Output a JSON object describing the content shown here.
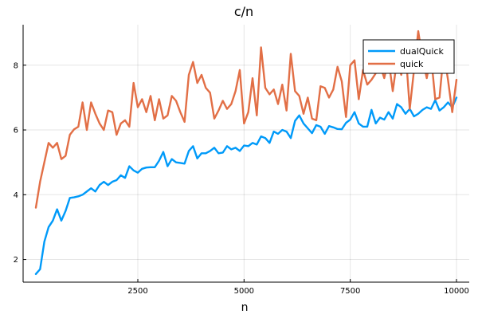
{
  "chart_data": {
    "type": "line",
    "title": "c/n",
    "xlabel": "n",
    "ylabel": "",
    "xlim": [
      -200,
      10300
    ],
    "ylim": [
      1.3,
      9.25
    ],
    "xticks": [
      2500,
      5000,
      7500,
      10000
    ],
    "xtick_labels": [
      "2500",
      "5000",
      "7500",
      "10000"
    ],
    "yticks": [
      2,
      4,
      6,
      8
    ],
    "ytick_labels": [
      "2",
      "4",
      "6",
      "8"
    ],
    "grid": true,
    "legend_position": "top-right",
    "series": [
      {
        "name": "dualQuick",
        "color": "#009af9",
        "x": [
          100,
          200,
          300,
          400,
          500,
          600,
          700,
          800,
          900,
          1000,
          1100,
          1200,
          1300,
          1400,
          1500,
          1600,
          1700,
          1800,
          1900,
          2000,
          2100,
          2200,
          2300,
          2400,
          2500,
          2600,
          2700,
          2800,
          2900,
          3000,
          3100,
          3200,
          3300,
          3400,
          3500,
          3600,
          3700,
          3800,
          3900,
          4000,
          4100,
          4200,
          4300,
          4400,
          4500,
          4600,
          4700,
          4800,
          4900,
          5000,
          5100,
          5200,
          5300,
          5400,
          5500,
          5600,
          5700,
          5800,
          5900,
          6000,
          6100,
          6200,
          6300,
          6400,
          6500,
          6600,
          6700,
          6800,
          6900,
          7000,
          7100,
          7200,
          7300,
          7400,
          7500,
          7600,
          7700,
          7800,
          7900,
          8000,
          8100,
          8200,
          8300,
          8400,
          8500,
          8600,
          8700,
          8800,
          8900,
          9000,
          9100,
          9200,
          9300,
          9400,
          9500,
          9600,
          9700,
          9800,
          9900,
          10000
        ],
        "y": [
          1.55,
          1.7,
          2.55,
          3.0,
          3.2,
          3.55,
          3.2,
          3.5,
          3.9,
          3.92,
          3.95,
          4.0,
          4.1,
          4.2,
          4.1,
          4.3,
          4.4,
          4.3,
          4.4,
          4.45,
          4.6,
          4.52,
          4.88,
          4.75,
          4.68,
          4.8,
          4.84,
          4.85,
          4.85,
          5.05,
          5.32,
          4.88,
          5.1,
          5.0,
          4.98,
          4.96,
          5.35,
          5.5,
          5.12,
          5.28,
          5.28,
          5.35,
          5.45,
          5.28,
          5.3,
          5.5,
          5.4,
          5.45,
          5.35,
          5.52,
          5.5,
          5.6,
          5.55,
          5.8,
          5.75,
          5.6,
          5.95,
          5.88,
          6.0,
          5.95,
          5.75,
          6.28,
          6.45,
          6.2,
          6.05,
          5.9,
          6.15,
          6.1,
          5.88,
          6.12,
          6.08,
          6.03,
          6.02,
          6.22,
          6.32,
          6.55,
          6.2,
          6.1,
          6.1,
          6.62,
          6.2,
          6.38,
          6.32,
          6.55,
          6.35,
          6.8,
          6.7,
          6.5,
          6.65,
          6.42,
          6.5,
          6.62,
          6.7,
          6.65,
          6.92,
          6.6,
          6.7,
          6.85,
          6.7,
          7.0
        ]
      },
      {
        "name": "quick",
        "color": "#e26f46",
        "x": [
          100,
          200,
          300,
          400,
          500,
          600,
          700,
          800,
          900,
          1000,
          1100,
          1200,
          1300,
          1400,
          1500,
          1600,
          1700,
          1800,
          1900,
          2000,
          2100,
          2200,
          2300,
          2400,
          2500,
          2600,
          2700,
          2800,
          2900,
          3000,
          3100,
          3200,
          3300,
          3400,
          3500,
          3600,
          3700,
          3800,
          3900,
          4000,
          4100,
          4200,
          4300,
          4400,
          4500,
          4600,
          4700,
          4800,
          4900,
          5000,
          5100,
          5200,
          5300,
          5400,
          5500,
          5600,
          5700,
          5800,
          5900,
          6000,
          6100,
          6200,
          6300,
          6400,
          6500,
          6600,
          6700,
          6800,
          6900,
          7000,
          7100,
          7200,
          7300,
          7400,
          7500,
          7600,
          7700,
          7800,
          7900,
          8000,
          8100,
          8200,
          8300,
          8400,
          8500,
          8600,
          8700,
          8800,
          8900,
          9000,
          9100,
          9200,
          9300,
          9400,
          9500,
          9600,
          9700,
          9800,
          9900,
          10000
        ],
        "y": [
          3.6,
          4.4,
          5.0,
          5.6,
          5.45,
          5.6,
          5.1,
          5.2,
          5.85,
          6.02,
          6.1,
          6.85,
          6.0,
          6.85,
          6.5,
          6.2,
          6.0,
          6.6,
          6.55,
          5.85,
          6.2,
          6.3,
          6.1,
          7.45,
          6.7,
          6.95,
          6.55,
          7.05,
          6.3,
          6.95,
          6.35,
          6.45,
          7.05,
          6.9,
          6.55,
          6.25,
          7.7,
          8.1,
          7.45,
          7.7,
          7.3,
          7.15,
          6.35,
          6.6,
          6.9,
          6.65,
          6.8,
          7.2,
          7.85,
          6.2,
          6.55,
          7.6,
          6.45,
          8.55,
          7.3,
          7.1,
          7.25,
          6.8,
          7.4,
          6.6,
          8.35,
          7.2,
          7.05,
          6.5,
          7.0,
          6.35,
          6.3,
          7.35,
          7.3,
          7.0,
          7.25,
          7.95,
          7.5,
          6.4,
          8.0,
          8.15,
          6.95,
          7.85,
          7.4,
          7.55,
          7.75,
          8.0,
          7.6,
          8.2,
          7.2,
          8.15,
          7.7,
          8.5,
          6.65,
          7.85,
          9.05,
          8.2,
          7.6,
          8.3,
          6.95,
          7.0,
          8.4,
          7.55,
          6.55,
          7.55
        ]
      }
    ]
  }
}
